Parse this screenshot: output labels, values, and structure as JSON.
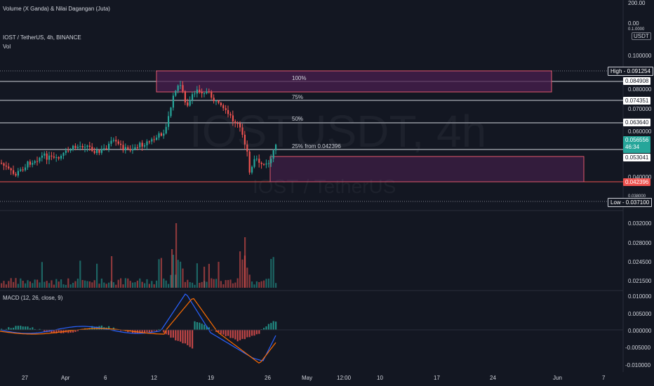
{
  "header": {
    "indicator_top": "Volume (X Ganda) & Nilai Dagangan (Juta)",
    "symbol_line": "IOST / TetherUS, 4h, BINANCE",
    "vol_label": "Vol",
    "macd_label": "MACD (12, 26, close, 9)"
  },
  "watermark": {
    "main": "IOSTUSDT, 4h",
    "sub": "IOST / TetherUS"
  },
  "scale_currency": "USDT",
  "top_scale": {
    "v1": "200.00",
    "v2": "0.00",
    "v3": "0.1.0000"
  },
  "fib": {
    "p100": "100%",
    "p75": "75%",
    "p50": "50%",
    "p25": "25% from 0.042396"
  },
  "price_labels": [
    {
      "text": "0.100000"
    },
    {
      "text": "0.080000"
    },
    {
      "text": "0.070000"
    },
    {
      "text": "0.060000"
    },
    {
      "text": "0.040000"
    },
    {
      "text": "0.038000"
    }
  ],
  "price_tags": {
    "high": "High - 0.091254",
    "t1": "0.084908",
    "t2": "0.074351",
    "t3": "0.063640",
    "current": "0.056556",
    "countdown": "46:34",
    "t4": "0.053041",
    "t5": "0.042396",
    "low": "Low - 0.037100"
  },
  "volume_scale": [
    "0.032000",
    "0.028000",
    "0.024500",
    "0.021500"
  ],
  "macd_scale": [
    "0.010000",
    "0.005000",
    "0.000000",
    "-0.005000",
    "-0.010000"
  ],
  "time_axis": [
    "27",
    "Apr",
    "6",
    "12",
    "19",
    "26",
    "May",
    "12:00",
    "10",
    "17",
    "24",
    "Jun",
    "7"
  ],
  "colors": {
    "bg": "#131722",
    "up": "#26a69a",
    "down": "#ef5350",
    "zone": "#4a1f4f",
    "zone_border": "#e2576c",
    "line": "#d1d4dc",
    "macd": "#2962ff",
    "signal": "#ff6d00",
    "high_tag": "#131722",
    "low_tag": "#131722"
  }
}
